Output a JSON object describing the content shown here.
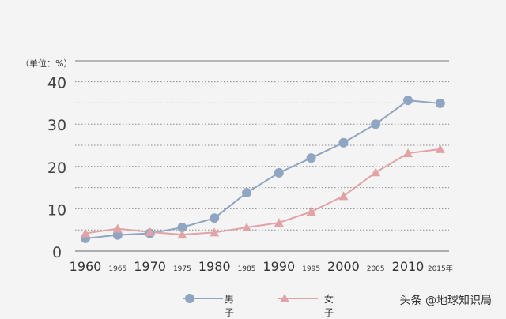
{
  "chart_data": {
    "type": "line",
    "unit_label": "（单位：%）",
    "x": [
      1960,
      1965,
      1970,
      1975,
      1980,
      1985,
      1990,
      1995,
      2000,
      2005,
      2010,
      2015
    ],
    "x_tick_labels": [
      "1960",
      "1965",
      "1970",
      "1975",
      "1980",
      "1985",
      "1990",
      "1995",
      "2000",
      "2005",
      "2010",
      "2015年"
    ],
    "y_ticks": [
      0,
      10,
      20,
      30,
      40
    ],
    "ylim": [
      0,
      45
    ],
    "grid": true,
    "legend_position": "bottom",
    "series": [
      {
        "name": "男子",
        "color": "#8fa5c2",
        "marker": "circle",
        "values": [
          3,
          3.8,
          4.2,
          5.6,
          7.8,
          13.8,
          18.5,
          22,
          25.6,
          30,
          35.6,
          34.9
        ]
      },
      {
        "name": "女子",
        "color": "#e2a3a6",
        "marker": "triangle",
        "values": [
          4.2,
          5.3,
          4.5,
          3.9,
          4.4,
          5.6,
          6.7,
          9.3,
          13,
          18.6,
          23.1,
          24.1
        ]
      }
    ]
  },
  "watermark": "头条 @地球知识局"
}
